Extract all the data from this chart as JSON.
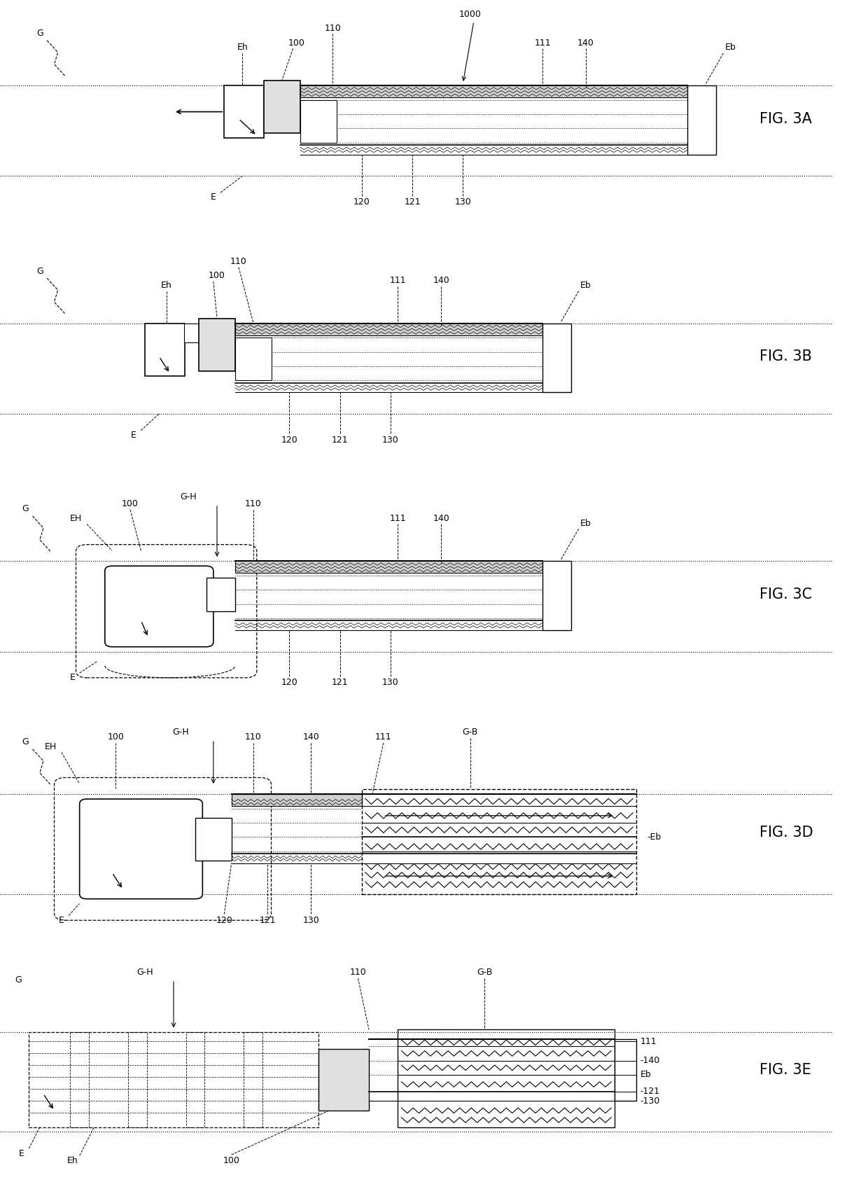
{
  "bg_color": "#ffffff",
  "fig_labels": [
    "FIG. 3A",
    "FIG. 3B",
    "FIG. 3C",
    "FIG. 3D",
    "FIG. 3E"
  ],
  "fig_label_fontsize": 15,
  "annotation_fontsize": 9
}
